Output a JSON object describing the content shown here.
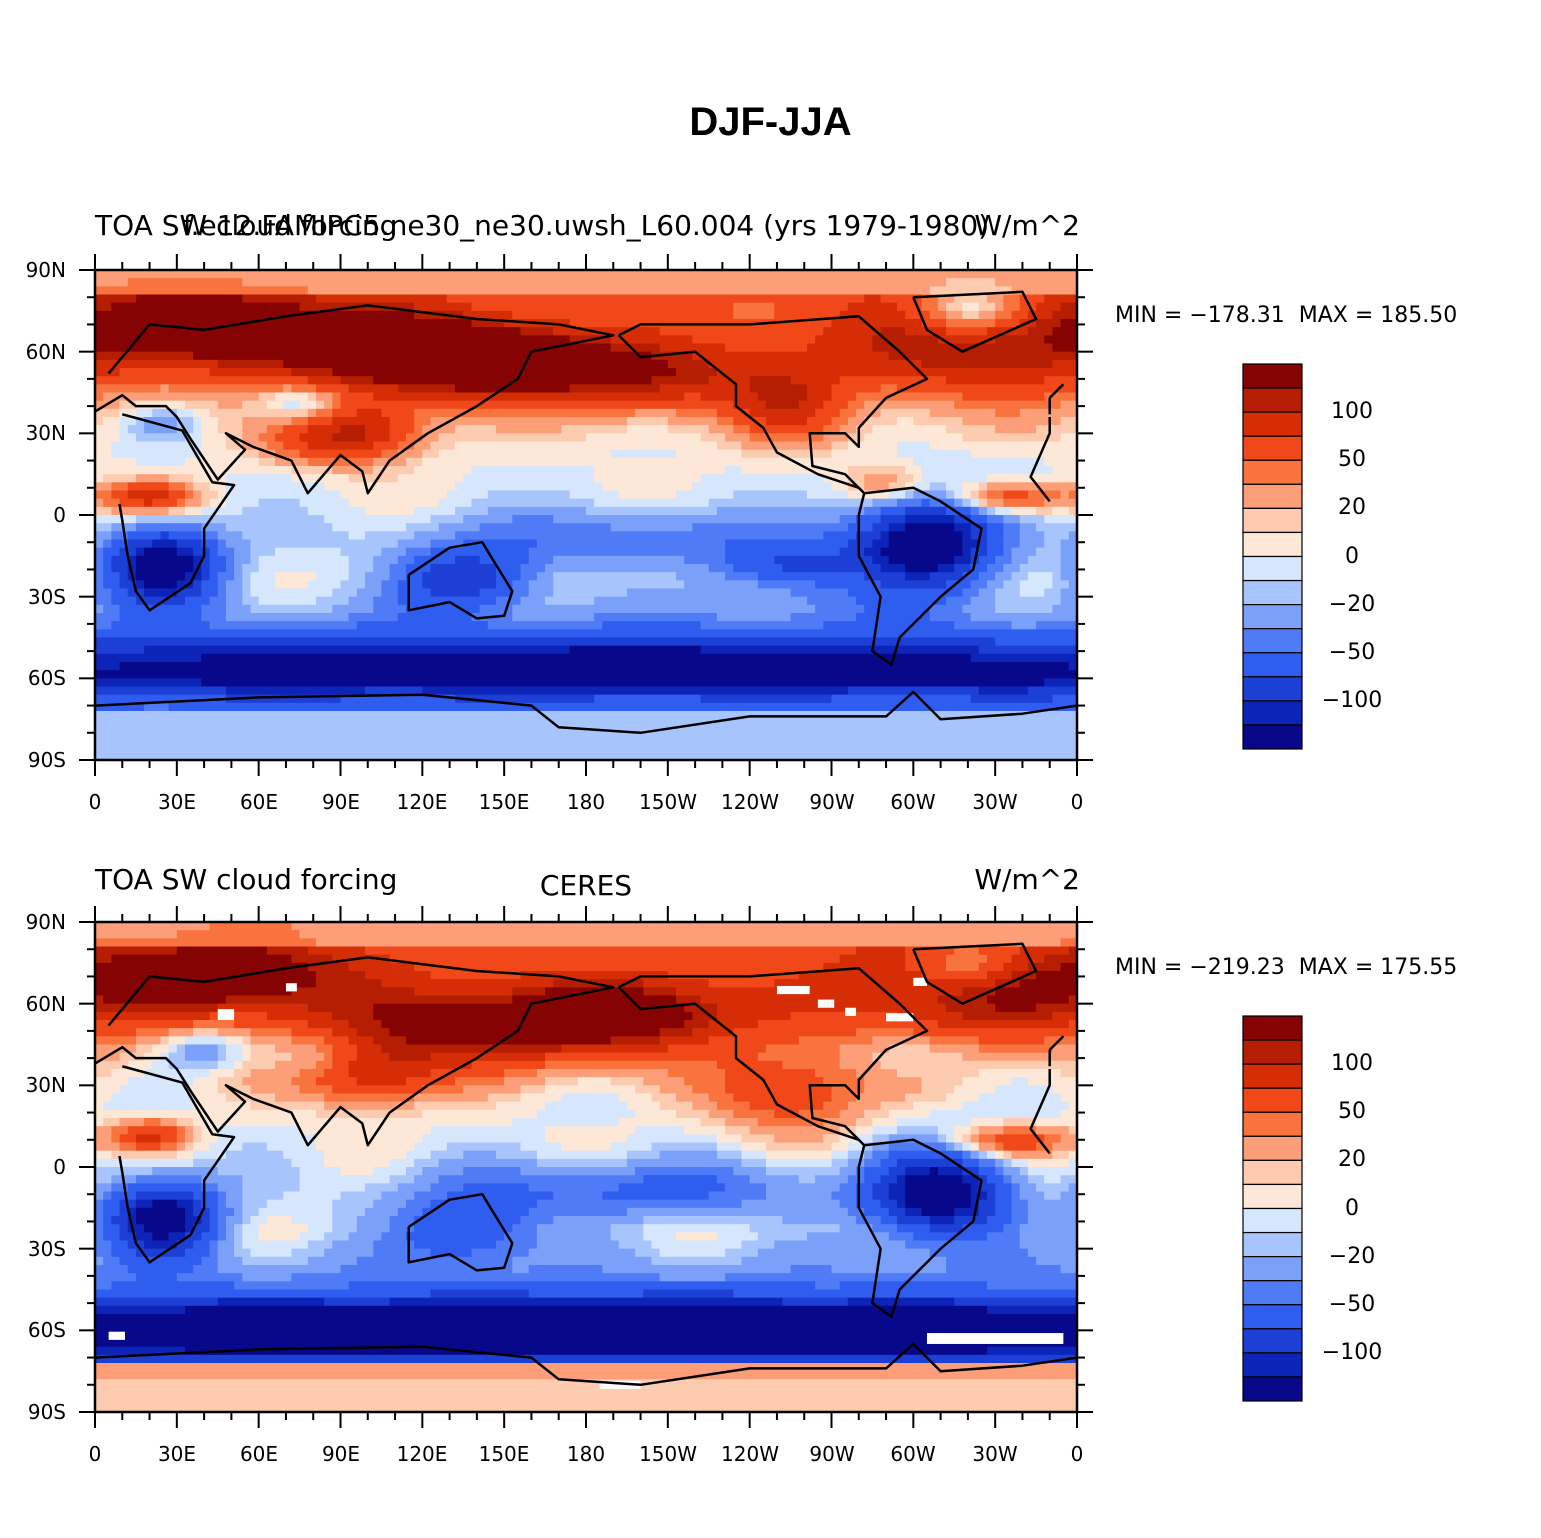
{
  "title": "DJF-JJA",
  "palette": {
    "colors": [
      "#08088a",
      "#0d24b8",
      "#1c3fd6",
      "#2e5df0",
      "#4f7cf6",
      "#7aa0fa",
      "#a8c4fc",
      "#d5e6fd",
      "#fde8d7",
      "#fdcbb0",
      "#fc9f78",
      "#f8733e",
      "#f04818",
      "#d52d06",
      "#b51e02",
      "#850303"
    ],
    "land_outline": "#000000"
  },
  "chart_data": [
    {
      "type": "heatmap",
      "title_left": "TOA SW cloud forcing",
      "title_center": "f.e12.FAMIPC5.ne30_ne30.uwsh_L60.004 (yrs 1979-1980)",
      "title_right": "W/m^2",
      "min_label": "MIN = −178.31",
      "max_label": "MAX = 185.50",
      "min": -178.31,
      "max": 185.5,
      "colorbar_labels": [
        "100",
        "50",
        "20",
        "0",
        "−20",
        "−50",
        "−100"
      ],
      "lat_ticks": [
        "90N",
        "60N",
        "30N",
        "0",
        "30S",
        "60S",
        "90S"
      ],
      "lon_ticks": [
        "0",
        "30E",
        "60E",
        "90E",
        "120E",
        "150E",
        "180",
        "150W",
        "120W",
        "90W",
        "60W",
        "30W",
        "0"
      ],
      "field": {
        "levels": [
          -120,
          -100,
          -75,
          -50,
          -35,
          -20,
          -10,
          0,
          10,
          20,
          35,
          50,
          75,
          100,
          120
        ],
        "data_gaps": false
      }
    },
    {
      "type": "heatmap",
      "title_left": "TOA SW cloud forcing",
      "title_center": "CERES",
      "title_right": "W/m^2",
      "min_label": "MIN = −219.23",
      "max_label": "MAX = 175.55",
      "min": -219.23,
      "max": 175.55,
      "colorbar_labels": [
        "100",
        "50",
        "20",
        "0",
        "−20",
        "−50",
        "−100"
      ],
      "lat_ticks": [
        "90N",
        "60N",
        "30N",
        "0",
        "30S",
        "60S",
        "90S"
      ],
      "lon_ticks": [
        "0",
        "30E",
        "60E",
        "90E",
        "120E",
        "150E",
        "180",
        "150W",
        "120W",
        "90W",
        "60W",
        "30W",
        "0"
      ],
      "field": {
        "levels": [
          -120,
          -100,
          -75,
          -50,
          -35,
          -20,
          -10,
          0,
          10,
          20,
          35,
          50,
          75,
          100,
          120
        ],
        "data_gaps": true
      }
    }
  ]
}
